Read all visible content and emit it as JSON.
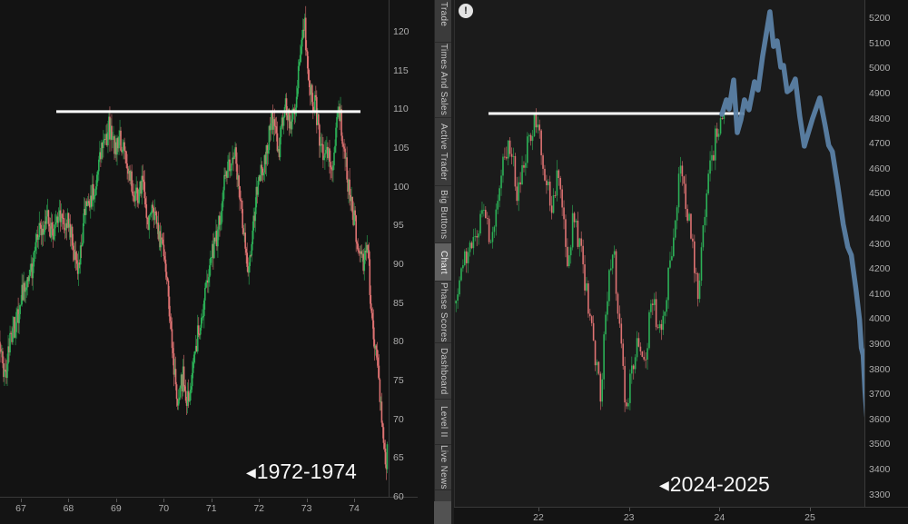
{
  "sidebar": {
    "tabs": [
      {
        "label": "Trade",
        "active": false
      },
      {
        "label": "Times And Sales",
        "active": false
      },
      {
        "label": "Active Trader",
        "active": false
      },
      {
        "label": "Big Buttons",
        "active": false
      },
      {
        "label": "Chart",
        "active": true
      },
      {
        "label": "Phase Scores",
        "active": false
      },
      {
        "label": "Dashboard",
        "active": false
      },
      {
        "label": "Level II",
        "active": false
      },
      {
        "label": "Live News",
        "active": false
      }
    ]
  },
  "info_icon": "!",
  "colors": {
    "candle_up": "#2cb157",
    "candle_down": "#de7272",
    "projection": "#5b81a5",
    "resistance": "#ffffff"
  },
  "chart_data": [
    {
      "id": "historical",
      "type": "candlestick",
      "pointer": "◀",
      "period_label": "1972-1974",
      "x_ticks": [
        "67",
        "68",
        "69",
        "70",
        "71",
        "72",
        "73",
        "74"
      ],
      "y_ticks": [
        "120",
        "115",
        "110",
        "105",
        "100",
        "95",
        "90",
        "85",
        "80",
        "75",
        "70",
        "65",
        "60"
      ],
      "x_domain": [
        66.561,
        74.724
      ],
      "y_domain": [
        124.1,
        60.0
      ],
      "seed": 11,
      "noise_amp": 1.5,
      "wick_amp": 1.6,
      "resistance_line": {
        "price": 109.7,
        "x_from": 67.744,
        "x_to": 74.133
      },
      "keypoints": [
        [
          66.56,
          80
        ],
        [
          66.66,
          74.5
        ],
        [
          66.83,
          82
        ],
        [
          67.04,
          86
        ],
        [
          67.32,
          92
        ],
        [
          67.55,
          96.5
        ],
        [
          67.67,
          93.5
        ],
        [
          67.82,
          97.5
        ],
        [
          67.99,
          95
        ],
        [
          68.18,
          89.5
        ],
        [
          68.37,
          97
        ],
        [
          68.56,
          101
        ],
        [
          68.72,
          104
        ],
        [
          68.85,
          108.5
        ],
        [
          68.98,
          103.5
        ],
        [
          69.1,
          106
        ],
        [
          69.23,
          104
        ],
        [
          69.38,
          97.5
        ],
        [
          69.54,
          101.5
        ],
        [
          69.67,
          94.5
        ],
        [
          69.8,
          97.5
        ],
        [
          69.96,
          92
        ],
        [
          70.11,
          86
        ],
        [
          70.3,
          70.5
        ],
        [
          70.41,
          76
        ],
        [
          70.53,
          72.5
        ],
        [
          70.64,
          77.5
        ],
        [
          70.8,
          84
        ],
        [
          70.99,
          90
        ],
        [
          71.2,
          97
        ],
        [
          71.37,
          102.5
        ],
        [
          71.48,
          105.5
        ],
        [
          71.62,
          97
        ],
        [
          71.79,
          90
        ],
        [
          71.96,
          99
        ],
        [
          72.13,
          104.5
        ],
        [
          72.28,
          108
        ],
        [
          72.42,
          105.5
        ],
        [
          72.53,
          110
        ],
        [
          72.66,
          107.5
        ],
        [
          72.8,
          113.5
        ],
        [
          72.95,
          120.5
        ],
        [
          73.06,
          114
        ],
        [
          73.18,
          110.5
        ],
        [
          73.31,
          104
        ],
        [
          73.43,
          106.5
        ],
        [
          73.54,
          101
        ],
        [
          73.66,
          111
        ],
        [
          73.75,
          108
        ],
        [
          73.87,
          100
        ],
        [
          73.98,
          96.5
        ],
        [
          74.09,
          93.5
        ],
        [
          74.19,
          89.5
        ],
        [
          74.27,
          92.5
        ],
        [
          74.34,
          86.5
        ],
        [
          74.42,
          81
        ],
        [
          74.49,
          77
        ],
        [
          74.55,
          71.5
        ],
        [
          74.61,
          66
        ],
        [
          74.67,
          63
        ],
        [
          74.7,
          69
        ]
      ]
    },
    {
      "id": "current",
      "type": "candlestick",
      "pointer": "◀",
      "period_label": "2024-2025",
      "x_ticks": [
        "22",
        "23",
        "24",
        "25"
      ],
      "x_tick_years": [
        2022,
        2023,
        2024,
        2025
      ],
      "y_ticks": [
        "5200",
        "5100",
        "5000",
        "4900",
        "4800",
        "4700",
        "4600",
        "4500",
        "4400",
        "4300",
        "4200",
        "4100",
        "4000",
        "3900",
        "3800",
        "3700",
        "3600",
        "3500",
        "3400",
        "3300"
      ],
      "x_domain": [
        2021.067,
        2025.602
      ],
      "y_domain": [
        5273.0,
        3251.5
      ],
      "seed": 29,
      "noise_amp": 48,
      "wick_amp": 42,
      "resistance_line": {
        "price": 4820,
        "x_from": 2021.448,
        "x_to": 2024.277
      },
      "keypoints": [
        [
          2021.07,
          4080
        ],
        [
          2021.17,
          4230
        ],
        [
          2021.27,
          4300
        ],
        [
          2021.39,
          4430
        ],
        [
          2021.48,
          4360
        ],
        [
          2021.59,
          4560
        ],
        [
          2021.69,
          4690
        ],
        [
          2021.77,
          4530
        ],
        [
          2021.85,
          4630
        ],
        [
          2021.97,
          4790
        ],
        [
          2022.07,
          4590
        ],
        [
          2022.15,
          4470
        ],
        [
          2022.22,
          4550
        ],
        [
          2022.32,
          4230
        ],
        [
          2022.39,
          4430
        ],
        [
          2022.47,
          4280
        ],
        [
          2022.55,
          4030
        ],
        [
          2022.63,
          3820
        ],
        [
          2022.69,
          3720
        ],
        [
          2022.76,
          4130
        ],
        [
          2022.83,
          4280
        ],
        [
          2022.9,
          3900
        ],
        [
          2022.97,
          3620
        ],
        [
          2023.04,
          3830
        ],
        [
          2023.11,
          3960
        ],
        [
          2023.18,
          3840
        ],
        [
          2023.26,
          4060
        ],
        [
          2023.33,
          3950
        ],
        [
          2023.41,
          4120
        ],
        [
          2023.49,
          4310
        ],
        [
          2023.56,
          4560
        ],
        [
          2023.64,
          4440
        ],
        [
          2023.71,
          4290
        ],
        [
          2023.76,
          4120
        ],
        [
          2023.82,
          4340
        ],
        [
          2023.89,
          4560
        ],
        [
          2023.96,
          4720
        ],
        [
          2024.02,
          4800
        ],
        [
          2024.06,
          4870
        ]
      ],
      "projection": {
        "points": [
          [
            2024.027,
            4817
          ],
          [
            2024.077,
            4875
          ],
          [
            2024.107,
            4838
          ],
          [
            2024.157,
            4954
          ],
          [
            2024.197,
            4744
          ],
          [
            2024.237,
            4795
          ],
          [
            2024.277,
            4875
          ],
          [
            2024.327,
            4835
          ],
          [
            2024.387,
            4947
          ],
          [
            2024.427,
            4914
          ],
          [
            2024.477,
            5049
          ],
          [
            2024.558,
            5226
          ],
          [
            2024.598,
            5088
          ],
          [
            2024.638,
            5110
          ],
          [
            2024.678,
            5005
          ],
          [
            2024.708,
            5012
          ],
          [
            2024.748,
            4907
          ],
          [
            2024.788,
            4918
          ],
          [
            2024.838,
            4958
          ],
          [
            2024.888,
            4809
          ],
          [
            2024.938,
            4690
          ],
          [
            2025.028,
            4799
          ],
          [
            2025.108,
            4882
          ],
          [
            2025.168,
            4773
          ],
          [
            2025.208,
            4693
          ],
          [
            2025.248,
            4668
          ],
          [
            2025.308,
            4530
          ],
          [
            2025.368,
            4378
          ],
          [
            2025.418,
            4288
          ],
          [
            2025.458,
            4255
          ],
          [
            2025.508,
            4121
          ],
          [
            2025.548,
            3998
          ],
          [
            2025.568,
            3886
          ],
          [
            2025.588,
            3857
          ],
          [
            2025.608,
            3715
          ],
          [
            2025.628,
            3614
          ],
          [
            2025.648,
            3527
          ],
          [
            2025.658,
            3483
          ]
        ]
      }
    }
  ]
}
